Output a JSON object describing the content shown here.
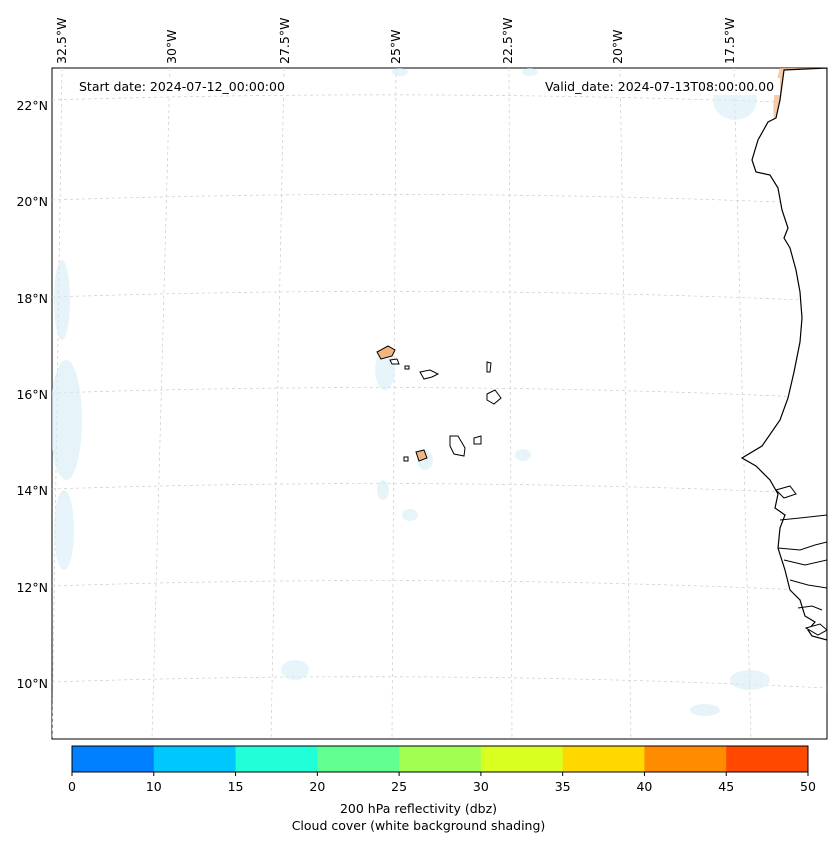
{
  "map": {
    "start_date": "Start date: 2024-07-12_00:00:00",
    "valid_date": "Valid_date: 2024-07-13T08:00:00.00",
    "lon_labels": [
      "32.5°W",
      "30°W",
      "27.5°W",
      "25°W",
      "22.5°W",
      "20°W",
      "17.5°W"
    ],
    "lat_labels": [
      "22°N",
      "20°N",
      "18°N",
      "16°N",
      "14°N",
      "12°N",
      "10°N"
    ],
    "gridlines": true
  },
  "colorbar": {
    "ticks": [
      "0",
      "10",
      "15",
      "20",
      "25",
      "30",
      "35",
      "40",
      "45",
      "50"
    ],
    "colors": [
      "#0080ff",
      "#00c8ff",
      "#20ffd8",
      "#60ff90",
      "#a0ff50",
      "#d8ff20",
      "#ffd800",
      "#ff8c00",
      "#ff4800"
    ],
    "label_line1": "200 hPa reflectivity (dbz)",
    "label_line2": "Cloud cover (white background shading)"
  }
}
